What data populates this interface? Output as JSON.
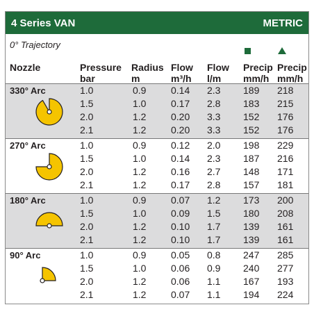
{
  "header": {
    "title": "4 Series VAN",
    "units": "METRIC"
  },
  "trajectory": "0° Trajectory",
  "columns": {
    "nozzle": "Nozzle",
    "pressure": [
      "Pressure",
      "bar"
    ],
    "radius": [
      "Radius",
      "m"
    ],
    "flow_m3h": [
      "Flow",
      "m³/h"
    ],
    "flow_lm": [
      "Flow",
      "l/m"
    ],
    "precip_square": [
      "Precip",
      "mm/h"
    ],
    "precip_triangle": [
      "Precip",
      "mm/h"
    ]
  },
  "colors": {
    "header": "#1e6b3a",
    "shade": "#dcdcdd",
    "nozzle_fill": "#f5c400"
  },
  "groups": [
    {
      "label": "330° Arc",
      "shape": "arc-330-icon",
      "rows": [
        [
          "1.0",
          "0.9",
          "0.14",
          "2.3",
          "189",
          "218"
        ],
        [
          "1.5",
          "1.0",
          "0.17",
          "2.8",
          "183",
          "215"
        ],
        [
          "2.0",
          "1.2",
          "0.20",
          "3.3",
          "152",
          "176"
        ],
        [
          "2.1",
          "1.2",
          "0.20",
          "3.3",
          "152",
          "176"
        ]
      ]
    },
    {
      "label": "270° Arc",
      "shape": "arc-270-icon",
      "rows": [
        [
          "1.0",
          "0.9",
          "0.12",
          "2.0",
          "198",
          "229"
        ],
        [
          "1.5",
          "1.0",
          "0.14",
          "2.3",
          "187",
          "216"
        ],
        [
          "2.0",
          "1.2",
          "0.16",
          "2.7",
          "148",
          "171"
        ],
        [
          "2.1",
          "1.2",
          "0.17",
          "2.8",
          "157",
          "181"
        ]
      ]
    },
    {
      "label": "180° Arc",
      "shape": "arc-180-icon",
      "rows": [
        [
          "1.0",
          "0.9",
          "0.07",
          "1.2",
          "173",
          "200"
        ],
        [
          "1.5",
          "1.0",
          "0.09",
          "1.5",
          "180",
          "208"
        ],
        [
          "2.0",
          "1.2",
          "0.10",
          "1.7",
          "139",
          "161"
        ],
        [
          "2.1",
          "1.2",
          "0.10",
          "1.7",
          "139",
          "161"
        ]
      ]
    },
    {
      "label": "90° Arc",
      "shape": "arc-90-icon",
      "rows": [
        [
          "1.0",
          "0.9",
          "0.05",
          "0.8",
          "247",
          "285"
        ],
        [
          "1.5",
          "1.0",
          "0.06",
          "0.9",
          "240",
          "277"
        ],
        [
          "2.0",
          "1.2",
          "0.06",
          "1.1",
          "167",
          "193"
        ],
        [
          "2.1",
          "1.2",
          "0.07",
          "1.1",
          "194",
          "224"
        ]
      ]
    }
  ]
}
